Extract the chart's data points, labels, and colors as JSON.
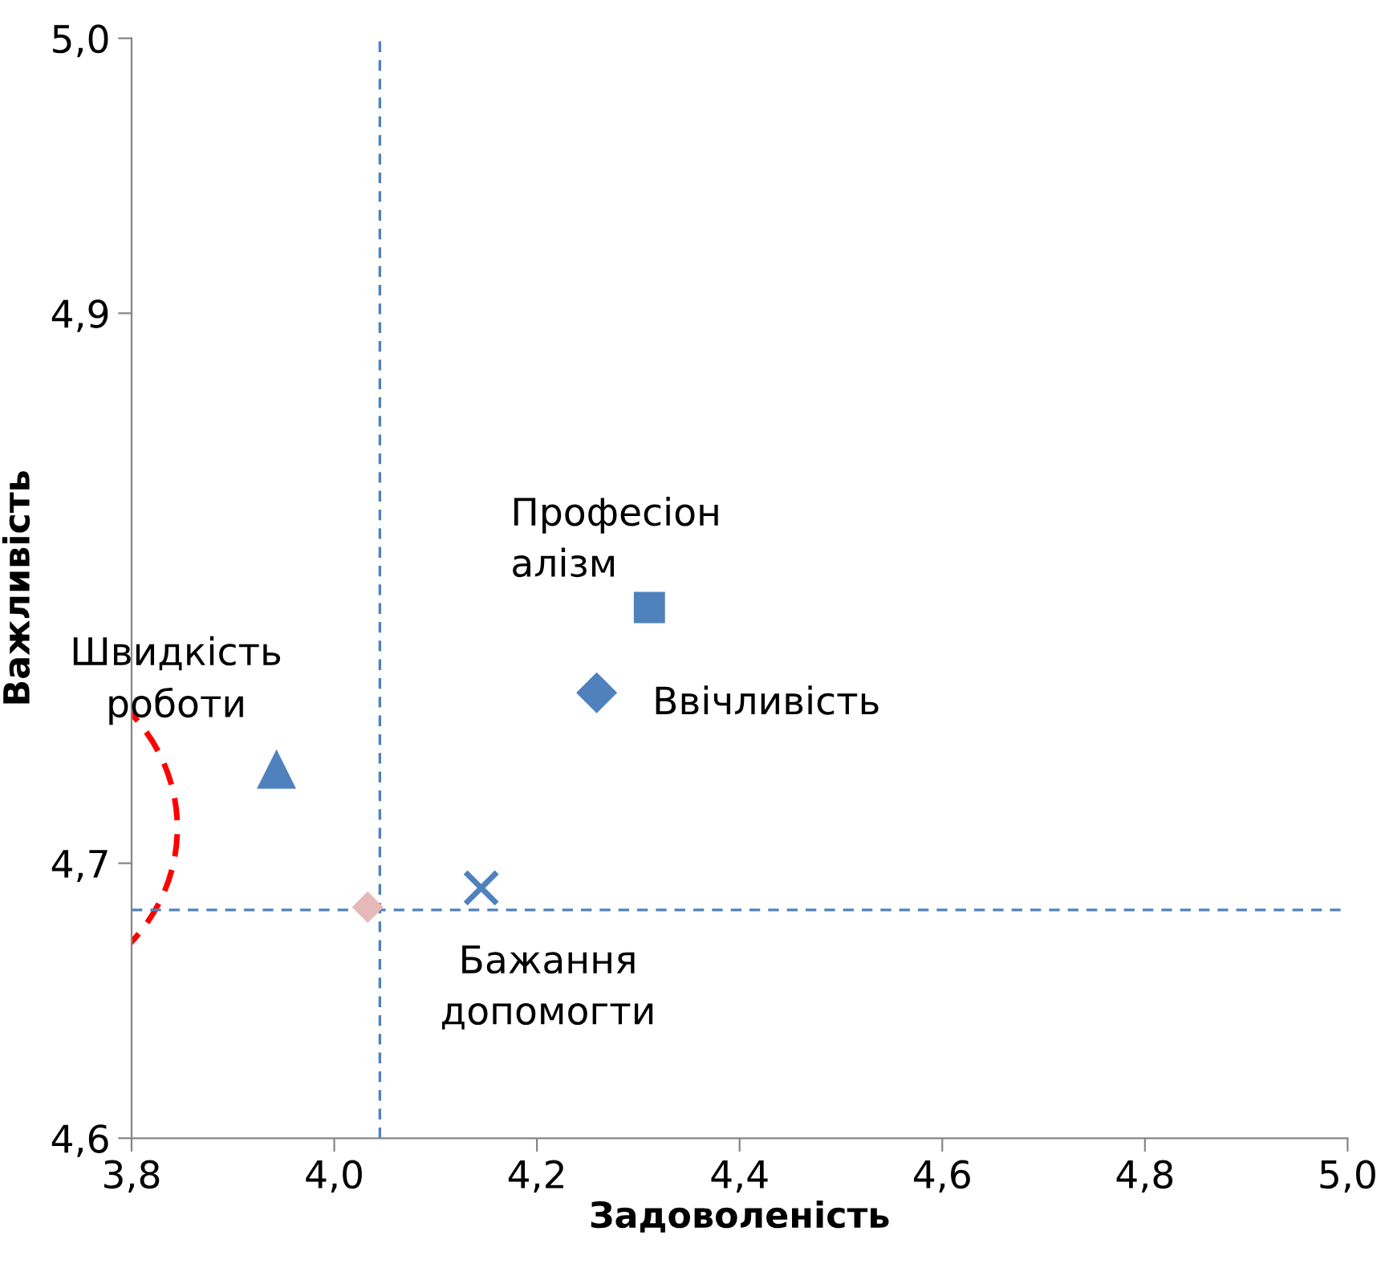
{
  "chart_data": {
    "type": "scatter",
    "xlabel": "Задоволеність",
    "ylabel": "Важливість",
    "xlim": [
      3.8,
      5.0
    ],
    "xticks": [
      {
        "value": 3.8,
        "label": "3,8"
      },
      {
        "value": 4.0,
        "label": "4,0"
      },
      {
        "value": 4.2,
        "label": "4,2"
      },
      {
        "value": 4.4,
        "label": "4,4"
      },
      {
        "value": 4.6,
        "label": "4,6"
      },
      {
        "value": 4.8,
        "label": "4,8"
      },
      {
        "value": 5.0,
        "label": "5,0"
      }
    ],
    "ylim": [
      4.6,
      5.0
    ],
    "yticks": [
      {
        "value": 4.6,
        "label": "4,6"
      },
      {
        "value": 4.7,
        "label": "4,7"
      },
      {
        "value": 4.9,
        "label": "4,9"
      },
      {
        "value": 5.0,
        "label": "5,0"
      }
    ],
    "grid": false,
    "legend": false,
    "series": [
      {
        "name": "Швидкість\nроботи",
        "color": "#4f81bd",
        "marker": "triangle",
        "x": [
          3.943
        ],
        "values": [
          4.734
        ]
      },
      {
        "name": "Професіон\nалізм",
        "color": "#4f81bd",
        "marker": "square",
        "x": [
          4.311
        ],
        "values": [
          4.793
        ]
      },
      {
        "name": "Ввічливість",
        "color": "#4f81bd",
        "marker": "diamond",
        "x": [
          4.259
        ],
        "values": [
          4.762
        ]
      },
      {
        "name": "Бажання\nдопомогти",
        "color": "#4f81bd",
        "marker": "cross",
        "x": [
          4.145
        ],
        "values": [
          4.691
        ]
      },
      {
        "color": "#e6b9b8",
        "marker": "diamond",
        "x": [
          4.033
        ],
        "values": [
          4.684
        ]
      }
    ],
    "ref_lines": [
      {
        "axis": "x",
        "value": 4.045,
        "color": "#4f81bd",
        "line_style": "dashed"
      },
      {
        "axis": "y",
        "value": 4.683,
        "color": "#4f81bd",
        "line_style": "dashed"
      }
    ]
  }
}
